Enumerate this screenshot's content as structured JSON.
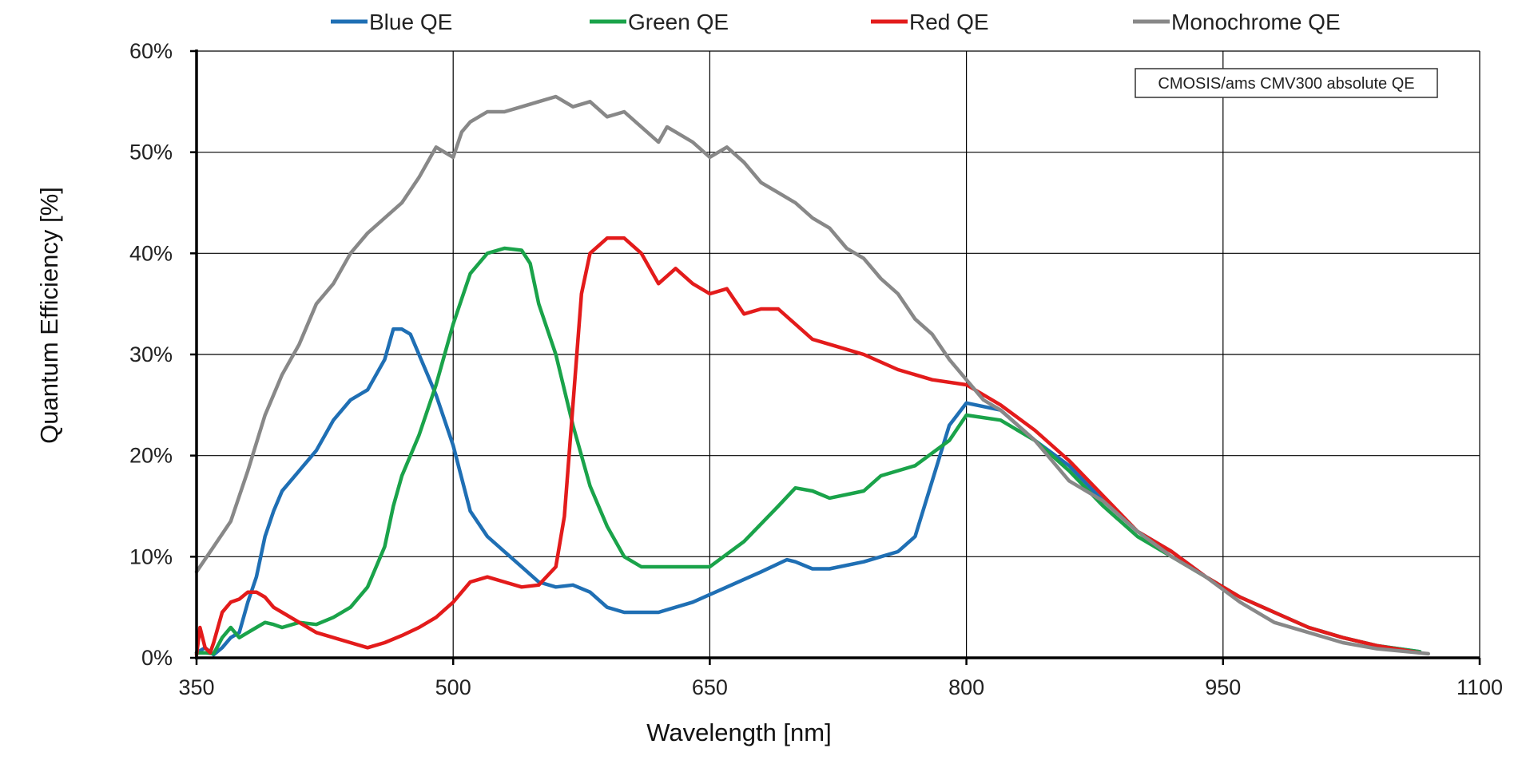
{
  "chart_data": {
    "type": "line",
    "xlabel": "Wavelength [nm]",
    "ylabel": "Quantum Efficiency [%]",
    "xlim": [
      350,
      1100
    ],
    "ylim": [
      0,
      60
    ],
    "x_ticks": [
      350,
      500,
      650,
      800,
      950,
      1100
    ],
    "x_tick_labels": [
      "350",
      "500",
      "650",
      "800",
      "950",
      "1100"
    ],
    "y_ticks": [
      0,
      10,
      20,
      30,
      40,
      50,
      60
    ],
    "y_tick_labels": [
      "0%",
      "10%",
      "20%",
      "30%",
      "40%",
      "50%",
      "60%"
    ],
    "grid": true,
    "legend_position": "top",
    "annotation": "CMOSIS/ams CMV300 absolute QE",
    "series": [
      {
        "name": "Blue QE",
        "color": "#1f6fb4",
        "x": [
          350,
          355,
          360,
          365,
          370,
          375,
          380,
          385,
          390,
          395,
          400,
          410,
          420,
          430,
          440,
          450,
          455,
          460,
          465,
          470,
          475,
          480,
          485,
          490,
          500,
          510,
          520,
          530,
          540,
          550,
          560,
          570,
          580,
          590,
          600,
          620,
          640,
          660,
          680,
          695,
          700,
          710,
          720,
          740,
          760,
          770,
          780,
          790,
          800,
          820,
          840,
          860,
          880,
          900,
          920,
          940,
          960,
          980,
          1000,
          1020,
          1040,
          1065
        ],
        "y": [
          0.5,
          1.0,
          0.3,
          1.0,
          2.0,
          2.5,
          5.5,
          8.0,
          12.0,
          14.5,
          16.5,
          18.5,
          20.5,
          23.5,
          25.5,
          26.5,
          28.0,
          29.5,
          32.5,
          32.5,
          32.0,
          30.0,
          28.0,
          26.0,
          21.0,
          14.5,
          12.0,
          10.5,
          9.0,
          7.5,
          7.0,
          7.2,
          6.5,
          5.0,
          4.5,
          4.5,
          5.5,
          7.0,
          8.5,
          9.7,
          9.5,
          8.8,
          8.8,
          9.5,
          10.5,
          12.0,
          17.5,
          23.0,
          25.2,
          24.5,
          21.5,
          19.0,
          15.5,
          12.5,
          10.5,
          8.0,
          6.0,
          4.5,
          3.0,
          2.0,
          1.2,
          0.6
        ]
      },
      {
        "name": "Green QE",
        "color": "#1aa34a",
        "x": [
          350,
          355,
          360,
          365,
          370,
          375,
          380,
          385,
          390,
          395,
          400,
          410,
          420,
          430,
          440,
          450,
          460,
          465,
          470,
          480,
          490,
          500,
          510,
          520,
          530,
          540,
          545,
          550,
          560,
          570,
          580,
          590,
          600,
          610,
          620,
          630,
          650,
          670,
          690,
          700,
          710,
          720,
          740,
          750,
          770,
          790,
          800,
          820,
          840,
          860,
          880,
          900,
          920,
          940,
          960,
          980,
          1000,
          1020,
          1040,
          1065
        ],
        "y": [
          0.5,
          0.5,
          0.4,
          2.0,
          3.0,
          2.0,
          2.5,
          3.0,
          3.5,
          3.3,
          3.0,
          3.5,
          3.3,
          4.0,
          5.0,
          7.0,
          11.0,
          15.0,
          18.0,
          22.0,
          27.0,
          33.0,
          38.0,
          40.0,
          40.5,
          40.3,
          39.0,
          35.0,
          30.0,
          23.0,
          17.0,
          13.0,
          10.0,
          9.0,
          9.0,
          9.0,
          9.0,
          11.5,
          15.0,
          16.8,
          16.5,
          15.8,
          16.5,
          18.0,
          19.0,
          21.5,
          24.0,
          23.5,
          21.5,
          18.5,
          15.0,
          12.0,
          10.0,
          8.0,
          6.0,
          4.5,
          3.0,
          2.0,
          1.2,
          0.6
        ]
      },
      {
        "name": "Red QE",
        "color": "#e31b1b",
        "x": [
          350,
          352,
          355,
          358,
          360,
          365,
          370,
          375,
          380,
          385,
          390,
          395,
          400,
          420,
          440,
          450,
          460,
          470,
          480,
          490,
          500,
          510,
          520,
          530,
          540,
          550,
          560,
          565,
          570,
          575,
          580,
          590,
          600,
          610,
          620,
          630,
          640,
          650,
          660,
          670,
          680,
          690,
          700,
          710,
          720,
          740,
          760,
          780,
          800,
          820,
          840,
          860,
          880,
          900,
          920,
          940,
          960,
          980,
          1000,
          1020,
          1040,
          1065
        ],
        "y": [
          0.3,
          3.0,
          1.0,
          0.5,
          1.5,
          4.5,
          5.5,
          5.8,
          6.5,
          6.5,
          6.0,
          5.0,
          4.5,
          2.5,
          1.5,
          1.0,
          1.5,
          2.2,
          3.0,
          4.0,
          5.5,
          7.5,
          8.0,
          7.5,
          7.0,
          7.2,
          9.0,
          14.0,
          25.0,
          36.0,
          40.0,
          41.5,
          41.5,
          40.0,
          37.0,
          38.5,
          37.0,
          36.0,
          36.5,
          34.0,
          34.5,
          34.5,
          33.0,
          31.5,
          31.0,
          30.0,
          28.5,
          27.5,
          27.0,
          25.0,
          22.5,
          19.5,
          16.0,
          12.5,
          10.5,
          8.0,
          6.0,
          4.5,
          3.0,
          2.0,
          1.2,
          0.5
        ]
      },
      {
        "name": "Monochrome QE",
        "color": "#888888",
        "x": [
          350,
          360,
          370,
          380,
          390,
          400,
          410,
          420,
          430,
          440,
          450,
          460,
          470,
          480,
          485,
          490,
          495,
          500,
          505,
          510,
          520,
          530,
          540,
          550,
          560,
          570,
          580,
          590,
          600,
          610,
          620,
          625,
          630,
          640,
          650,
          660,
          670,
          680,
          690,
          700,
          710,
          720,
          730,
          740,
          750,
          760,
          770,
          780,
          790,
          800,
          810,
          820,
          840,
          860,
          880,
          900,
          920,
          940,
          960,
          980,
          1000,
          1020,
          1040,
          1070
        ],
        "y": [
          8.5,
          11.0,
          13.5,
          18.5,
          24.0,
          28.0,
          31.0,
          35.0,
          37.0,
          40.0,
          42.0,
          43.5,
          45.0,
          47.5,
          49.0,
          50.5,
          50.0,
          49.5,
          52.0,
          53.0,
          54.0,
          54.0,
          54.5,
          55.0,
          55.5,
          54.5,
          55.0,
          53.5,
          54.0,
          52.5,
          51.0,
          52.5,
          52.0,
          51.0,
          49.5,
          50.5,
          49.0,
          47.0,
          46.0,
          45.0,
          43.5,
          42.5,
          40.5,
          39.5,
          37.5,
          36.0,
          33.5,
          32.0,
          29.5,
          27.5,
          25.5,
          24.5,
          21.5,
          17.5,
          15.5,
          12.5,
          10.0,
          8.0,
          5.5,
          3.5,
          2.5,
          1.5,
          0.9,
          0.4
        ]
      }
    ]
  }
}
